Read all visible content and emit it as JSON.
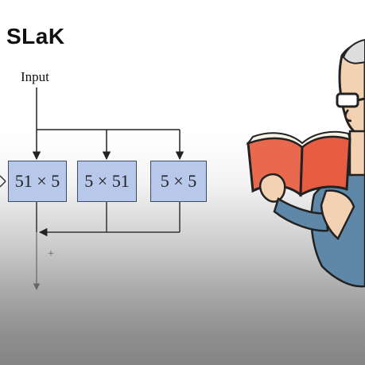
{
  "title": "SLaK",
  "diagram": {
    "input_label": "Input",
    "kernels": [
      "51 × 5",
      "5 × 51",
      "5 × 5"
    ],
    "sum_symbol": "+"
  },
  "illustration": {
    "subject": "cartoon-person-reading-book",
    "book_color": "#e9694f",
    "skin_color": "#f3d2b4",
    "shirt_color": "#5f87a8"
  }
}
